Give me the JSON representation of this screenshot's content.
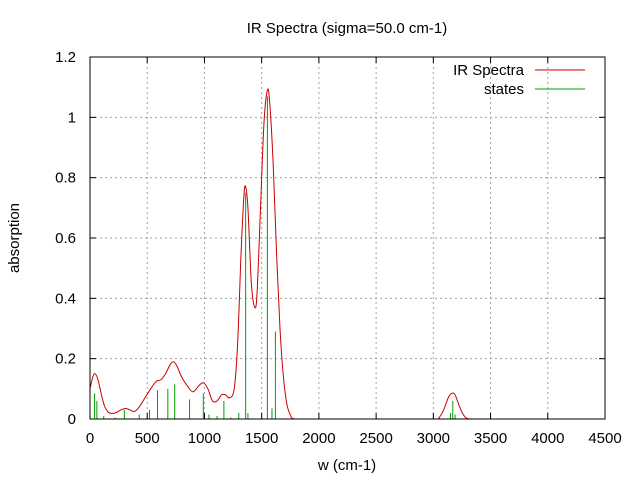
{
  "chart_data": {
    "type": "line",
    "title": "IR Spectra (sigma=50.0 cm-1)",
    "xlabel": "w (cm-1)",
    "ylabel": "absorption",
    "xlim": [
      0,
      4500
    ],
    "ylim": [
      0,
      1.2
    ],
    "x_ticks": [
      0,
      500,
      1000,
      1500,
      2000,
      2500,
      3000,
      3500,
      4000,
      4500
    ],
    "x_tick_labels": [
      "0",
      "500",
      "1000",
      "1500",
      "2000",
      "2500",
      "3000",
      "3500",
      "4000",
      "4500"
    ],
    "y_ticks": [
      0,
      0.2,
      0.4,
      0.6,
      0.8,
      1.0,
      1.2
    ],
    "y_tick_labels": [
      "0",
      "0.2",
      "0.4",
      "0.6",
      "0.8",
      "1",
      "1.2"
    ],
    "grid": true,
    "legend_position": "top-right",
    "series": [
      {
        "name": "IR Spectra",
        "kind": "line",
        "color": "#cc0000",
        "points": [
          [
            0,
            0.1
          ],
          [
            25,
            0.14
          ],
          [
            45,
            0.15
          ],
          [
            70,
            0.13
          ],
          [
            100,
            0.08
          ],
          [
            130,
            0.04
          ],
          [
            170,
            0.02
          ],
          [
            220,
            0.02
          ],
          [
            270,
            0.03
          ],
          [
            310,
            0.035
          ],
          [
            350,
            0.03
          ],
          [
            390,
            0.025
          ],
          [
            430,
            0.04
          ],
          [
            480,
            0.07
          ],
          [
            530,
            0.1
          ],
          [
            580,
            0.125
          ],
          [
            620,
            0.13
          ],
          [
            660,
            0.15
          ],
          [
            700,
            0.18
          ],
          [
            730,
            0.19
          ],
          [
            760,
            0.175
          ],
          [
            800,
            0.14
          ],
          [
            850,
            0.11
          ],
          [
            900,
            0.09
          ],
          [
            950,
            0.11
          ],
          [
            990,
            0.12
          ],
          [
            1030,
            0.1
          ],
          [
            1070,
            0.06
          ],
          [
            1110,
            0.06
          ],
          [
            1150,
            0.08
          ],
          [
            1185,
            0.08
          ],
          [
            1220,
            0.07
          ],
          [
            1260,
            0.1
          ],
          [
            1290,
            0.25
          ],
          [
            1320,
            0.55
          ],
          [
            1345,
            0.74
          ],
          [
            1360,
            0.77
          ],
          [
            1380,
            0.7
          ],
          [
            1410,
            0.45
          ],
          [
            1440,
            0.37
          ],
          [
            1460,
            0.42
          ],
          [
            1490,
            0.7
          ],
          [
            1520,
            0.98
          ],
          [
            1550,
            1.09
          ],
          [
            1570,
            1.05
          ],
          [
            1600,
            0.85
          ],
          [
            1630,
            0.55
          ],
          [
            1660,
            0.3
          ],
          [
            1690,
            0.14
          ],
          [
            1720,
            0.05
          ],
          [
            1750,
            0.015
          ],
          [
            1790,
            0.0
          ],
          [
            2000,
            0.0
          ],
          [
            2500,
            0.0
          ],
          [
            3000,
            0.0
          ],
          [
            3050,
            0.005
          ],
          [
            3090,
            0.03
          ],
          [
            3130,
            0.07
          ],
          [
            3160,
            0.085
          ],
          [
            3190,
            0.08
          ],
          [
            3230,
            0.04
          ],
          [
            3270,
            0.01
          ],
          [
            3320,
            0.0
          ],
          [
            3500,
            0.0
          ],
          [
            4000,
            0.0
          ],
          [
            4500,
            0.0
          ]
        ]
      },
      {
        "name": "states",
        "kind": "impulses",
        "color": "#00a000",
        "points": [
          [
            40,
            0.085
          ],
          [
            60,
            0.06
          ],
          [
            120,
            0.01
          ],
          [
            220,
            0.005
          ],
          [
            300,
            0.03
          ],
          [
            430,
            0.015
          ],
          [
            520,
            0.03
          ],
          [
            590,
            0.095
          ],
          [
            680,
            0.1
          ],
          [
            740,
            0.115
          ],
          [
            870,
            0.065
          ],
          [
            990,
            0.085
          ],
          [
            1040,
            0.015
          ],
          [
            1110,
            0.01
          ],
          [
            1170,
            0.06
          ],
          [
            1230,
            0.005
          ],
          [
            1300,
            0.02
          ],
          [
            1360,
            0.75
          ],
          [
            1380,
            0.02
          ],
          [
            1550,
            1.07
          ],
          [
            1590,
            0.035
          ],
          [
            1620,
            0.29
          ],
          [
            3150,
            0.02
          ],
          [
            3170,
            0.06
          ],
          [
            3190,
            0.015
          ]
        ]
      }
    ]
  }
}
